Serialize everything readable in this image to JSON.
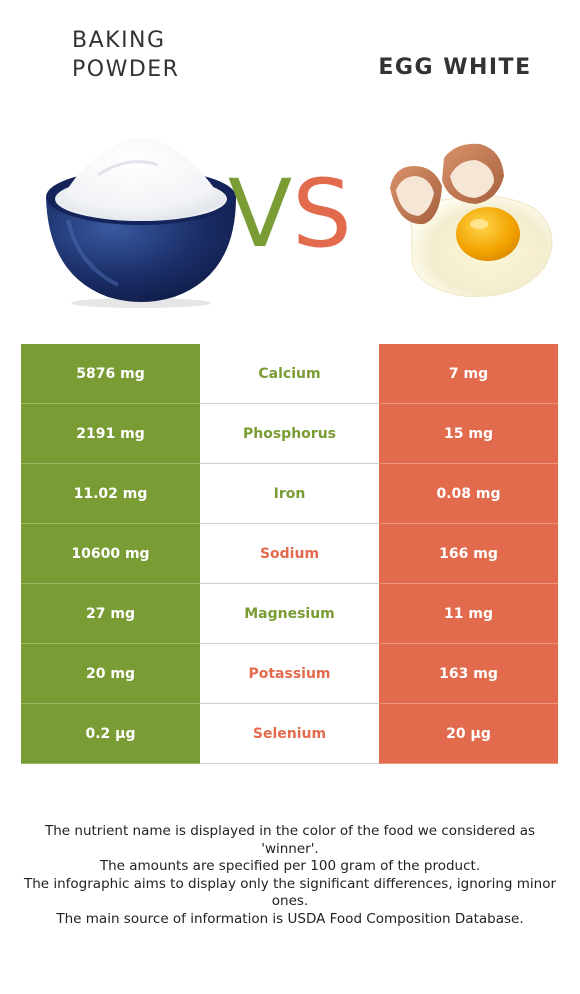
{
  "titles": {
    "left_line1": "BAKING",
    "left_line2": "POWDER",
    "right": "EGG WHITE"
  },
  "vs": {
    "v": "V",
    "s": "S"
  },
  "colors": {
    "left_food": "#7a9c35",
    "right_food": "#e26b4d"
  },
  "nutrients": [
    {
      "name": "Calcium",
      "left": "5876 mg",
      "right": "7 mg",
      "winner": "left"
    },
    {
      "name": "Phosphorus",
      "left": "2191 mg",
      "right": "15 mg",
      "winner": "left"
    },
    {
      "name": "Iron",
      "left": "11.02 mg",
      "right": "0.08 mg",
      "winner": "left"
    },
    {
      "name": "Sodium",
      "left": "10600 mg",
      "right": "166 mg",
      "winner": "right"
    },
    {
      "name": "Magnesium",
      "left": "27 mg",
      "right": "11 mg",
      "winner": "left"
    },
    {
      "name": "Potassium",
      "left": "20 mg",
      "right": "163 mg",
      "winner": "right"
    },
    {
      "name": "Selenium",
      "left": "0.2 µg",
      "right": "20 µg",
      "winner": "right"
    }
  ],
  "footnotes": [
    "The nutrient name is displayed in the color of the food we considered as 'winner'.",
    "The amounts are specified per 100 gram of the product.",
    "The infographic aims to display only the significant differences, ignoring minor ones.",
    "The main source of information is USDA Food Composition Database."
  ]
}
